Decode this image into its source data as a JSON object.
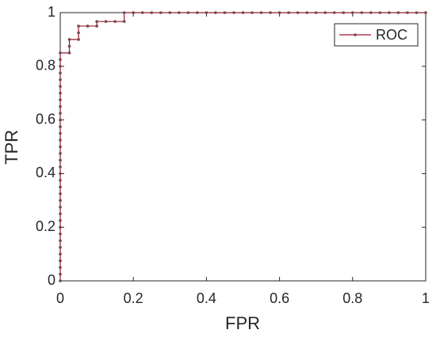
{
  "chart_data": {
    "type": "line",
    "xlabel": "FPR",
    "ylabel": "TPR",
    "x": [
      0,
      0,
      0,
      0,
      0,
      0,
      0,
      0,
      0,
      0,
      0,
      0,
      0,
      0,
      0,
      0,
      0,
      0,
      0,
      0,
      0,
      0,
      0,
      0,
      0,
      0,
      0,
      0,
      0,
      0,
      0,
      0,
      0,
      0,
      0,
      0.025,
      0.025,
      0.025,
      0.05,
      0.05,
      0.05,
      0.075,
      0.1,
      0.1,
      0.125,
      0.15,
      0.175,
      0.175,
      0.2,
      0.225,
      0.25,
      0.275,
      0.3,
      0.325,
      0.35,
      0.375,
      0.4,
      0.425,
      0.45,
      0.475,
      0.5,
      0.525,
      0.55,
      0.575,
      0.6,
      0.625,
      0.65,
      0.675,
      0.7,
      0.725,
      0.75,
      0.775,
      0.8,
      0.825,
      0.85,
      0.875,
      0.9,
      0.925,
      0.95,
      0.975,
      1
    ],
    "series": [
      {
        "name": "ROC",
        "color": "#a2142f",
        "marker_color": "#6e4a4a",
        "values": [
          0,
          0.025,
          0.05,
          0.075,
          0.1,
          0.125,
          0.15,
          0.175,
          0.2,
          0.225,
          0.25,
          0.275,
          0.3,
          0.325,
          0.35,
          0.375,
          0.4,
          0.425,
          0.45,
          0.475,
          0.5,
          0.525,
          0.55,
          0.575,
          0.6,
          0.625,
          0.65,
          0.675,
          0.7,
          0.725,
          0.75,
          0.775,
          0.8,
          0.825,
          0.85,
          0.85,
          0.875,
          0.9,
          0.9,
          0.925,
          0.95,
          0.95,
          0.95,
          0.967,
          0.967,
          0.967,
          0.967,
          1,
          1,
          1,
          1,
          1,
          1,
          1,
          1,
          1,
          1,
          1,
          1,
          1,
          1,
          1,
          1,
          1,
          1,
          1,
          1,
          1,
          1,
          1,
          1,
          1,
          1,
          1,
          1,
          1,
          1,
          1,
          1,
          1,
          1
        ]
      }
    ],
    "xlim": [
      0,
      1
    ],
    "ylim": [
      0,
      1
    ],
    "xticks": [
      0,
      0.2,
      0.4,
      0.6,
      0.8,
      1
    ],
    "yticks": [
      0,
      0.2,
      0.4,
      0.6,
      0.8,
      1
    ],
    "grid": false,
    "legend": "northeast"
  }
}
